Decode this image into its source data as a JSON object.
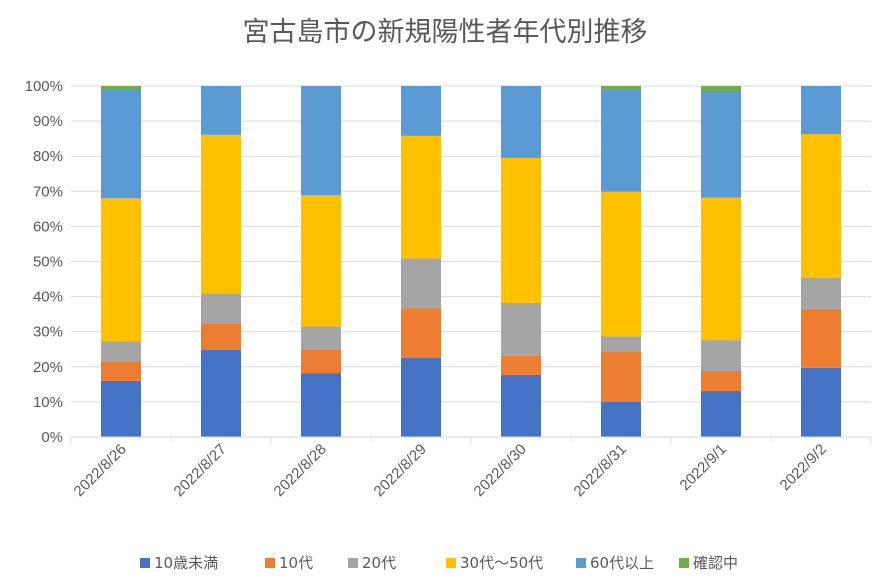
{
  "chart_data": {
    "type": "bar",
    "stacked": "percent",
    "title": "宮古島市の新規陽性者年代別推移",
    "xlabel": "",
    "ylabel": "",
    "ylim": [
      0,
      100
    ],
    "yticks": [
      "0%",
      "10%",
      "20%",
      "30%",
      "40%",
      "50%",
      "60%",
      "70%",
      "80%",
      "90%",
      "100%"
    ],
    "grid": true,
    "legend_position": "bottom",
    "categories": [
      "2022/8/26",
      "2022/8/27",
      "2022/8/28",
      "2022/8/29",
      "2022/8/30",
      "2022/8/31",
      "2022/9/1",
      "2022/9/2"
    ],
    "series": [
      {
        "name": "10歳未満",
        "color": "#4472C4",
        "values": [
          16.0,
          24.8,
          18.2,
          22.5,
          17.7,
          10.0,
          13.1,
          19.7
        ]
      },
      {
        "name": "10代",
        "color": "#ED7D31",
        "values": [
          5.5,
          7.4,
          6.7,
          14.2,
          5.4,
          14.4,
          5.7,
          16.8
        ]
      },
      {
        "name": "20代",
        "color": "#A5A5A5",
        "values": [
          5.7,
          8.7,
          6.6,
          14.2,
          15.1,
          4.3,
          8.8,
          8.9
        ]
      },
      {
        "name": "30代～50代",
        "color": "#FFC000",
        "values": [
          40.8,
          45.2,
          37.4,
          34.9,
          41.3,
          41.2,
          40.6,
          40.9
        ]
      },
      {
        "name": "60代以上",
        "color": "#5B9BD5",
        "values": [
          31.0,
          13.9,
          31.1,
          14.2,
          20.5,
          29.0,
          30.4,
          13.7
        ]
      },
      {
        "name": "確認中",
        "color": "#70AD47",
        "values": [
          1.0,
          0,
          0,
          0,
          0,
          1.1,
          1.4,
          0
        ]
      }
    ]
  },
  "colors": {
    "grid": "#D9D9D9",
    "axis": "#D9D9D9",
    "text": "#595959"
  }
}
